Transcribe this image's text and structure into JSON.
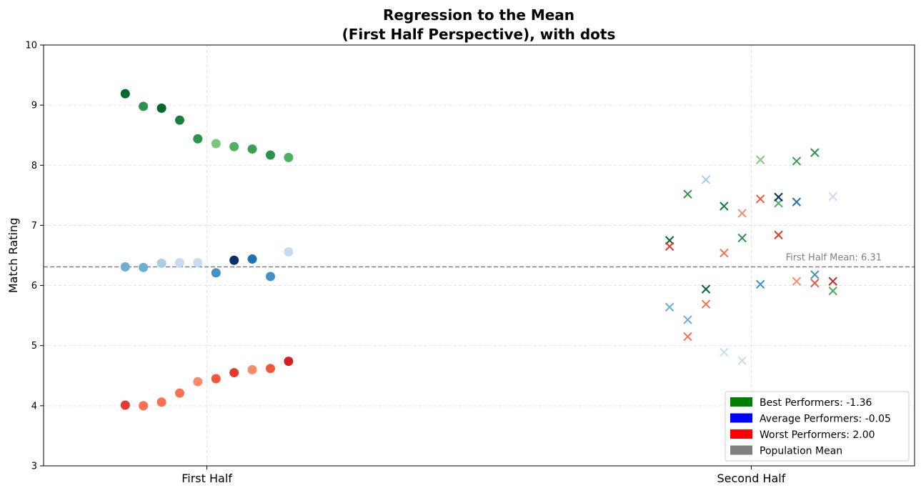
{
  "chart_data": {
    "type": "scatter",
    "title_lines": [
      "Regression to the Mean",
      "(First Half Perspective), with dots"
    ],
    "xlabel": "",
    "ylabel": "Match Rating",
    "categories": [
      "First Half",
      "Second Half"
    ],
    "ylim": [
      3,
      10
    ],
    "yticks": [
      3,
      4,
      5,
      6,
      7,
      8,
      9,
      10
    ],
    "grid": true,
    "population_mean": 6.31,
    "mean_label": "First Half Mean: 6.31",
    "legend_position": "lower-right",
    "legend": [
      {
        "label": "Best Performers: -1.36",
        "color": "#008000"
      },
      {
        "label": "Average Performers: -0.05",
        "color": "#0000ff"
      },
      {
        "label": "Worst Performers: 2.00",
        "color": "#ff0000"
      },
      {
        "label": "Population Mean",
        "color": "#808080"
      }
    ],
    "series": [
      {
        "group": "best",
        "first_half_marker": "dot",
        "second_half_marker": "x",
        "points": [
          {
            "x1": -0.15,
            "y1": 9.19,
            "x2": 0.85,
            "y2": 6.75,
            "color": "#00682a"
          },
          {
            "x1": -0.1167,
            "y1": 8.98,
            "x2": 0.8833,
            "y2": 7.52,
            "color": "#2a924a"
          },
          {
            "x1": -0.0833,
            "y1": 8.95,
            "x2": 0.9167,
            "y2": 5.94,
            "color": "#00682a"
          },
          {
            "x1": -0.05,
            "y1": 8.75,
            "x2": 0.95,
            "y2": 7.32,
            "color": "#1b7e3e"
          },
          {
            "x1": -0.0167,
            "y1": 8.44,
            "x2": 0.9833,
            "y2": 6.79,
            "color": "#2a924a"
          },
          {
            "x1": 0.0167,
            "y1": 8.36,
            "x2": 1.0167,
            "y2": 8.09,
            "color": "#7bc87c"
          },
          {
            "x1": 0.05,
            "y1": 8.31,
            "x2": 1.05,
            "y2": 7.37,
            "color": "#4daf62"
          },
          {
            "x1": 0.0833,
            "y1": 8.27,
            "x2": 1.0833,
            "y2": 8.07,
            "color": "#37a055"
          },
          {
            "x1": 0.1167,
            "y1": 8.17,
            "x2": 1.1167,
            "y2": 8.21,
            "color": "#2a924a"
          },
          {
            "x1": 0.15,
            "y1": 8.13,
            "x2": 1.15,
            "y2": 5.91,
            "color": "#4daf62"
          }
        ]
      },
      {
        "group": "average",
        "first_half_marker": "dot",
        "second_half_marker": "x",
        "points": [
          {
            "x1": -0.15,
            "y1": 6.31,
            "x2": 0.85,
            "y2": 5.64,
            "color": "#6aaed6"
          },
          {
            "x1": -0.1167,
            "y1": 6.3,
            "x2": 0.8833,
            "y2": 5.43,
            "color": "#6aaed6"
          },
          {
            "x1": -0.0833,
            "y1": 6.37,
            "x2": 0.9167,
            "y2": 7.76,
            "color": "#a6cee4"
          },
          {
            "x1": -0.05,
            "y1": 6.38,
            "x2": 0.95,
            "y2": 4.89,
            "color": "#c6dbef"
          },
          {
            "x1": -0.0167,
            "y1": 6.38,
            "x2": 0.9833,
            "y2": 4.75,
            "color": "#c6dbef"
          },
          {
            "x1": 0.0167,
            "y1": 6.21,
            "x2": 1.0167,
            "y2": 6.02,
            "color": "#4292c6"
          },
          {
            "x1": 0.05,
            "y1": 6.42,
            "x2": 1.05,
            "y2": 7.47,
            "color": "#08306b"
          },
          {
            "x1": 0.0833,
            "y1": 6.44,
            "x2": 1.0833,
            "y2": 7.39,
            "color": "#2171b5"
          },
          {
            "x1": 0.1167,
            "y1": 6.15,
            "x2": 1.1167,
            "y2": 6.18,
            "color": "#4292c6"
          },
          {
            "x1": 0.15,
            "y1": 6.56,
            "x2": 1.15,
            "y2": 7.48,
            "color": "#c6dbef"
          }
        ]
      },
      {
        "group": "worst",
        "first_half_marker": "dot",
        "second_half_marker": "x",
        "points": [
          {
            "x1": -0.15,
            "y1": 4.01,
            "x2": 0.85,
            "y2": 6.65,
            "color": "#e8392f"
          },
          {
            "x1": -0.1167,
            "y1": 4.0,
            "x2": 0.8833,
            "y2": 5.15,
            "color": "#fb7050"
          },
          {
            "x1": -0.0833,
            "y1": 4.06,
            "x2": 0.9167,
            "y2": 5.69,
            "color": "#fb7050"
          },
          {
            "x1": -0.05,
            "y1": 4.21,
            "x2": 0.95,
            "y2": 6.54,
            "color": "#fb7050"
          },
          {
            "x1": -0.0167,
            "y1": 4.4,
            "x2": 0.9833,
            "y2": 7.2,
            "color": "#fc8a6a"
          },
          {
            "x1": 0.0167,
            "y1": 4.45,
            "x2": 1.0167,
            "y2": 7.44,
            "color": "#f5553c"
          },
          {
            "x1": 0.05,
            "y1": 4.55,
            "x2": 1.05,
            "y2": 6.84,
            "color": "#e8392f"
          },
          {
            "x1": 0.0833,
            "y1": 4.6,
            "x2": 1.0833,
            "y2": 6.07,
            "color": "#fc8a6a"
          },
          {
            "x1": 0.1167,
            "y1": 4.62,
            "x2": 1.1167,
            "y2": 6.04,
            "color": "#f5553c"
          },
          {
            "x1": 0.15,
            "y1": 4.74,
            "x2": 1.15,
            "y2": 6.07,
            "color": "#d42020"
          }
        ]
      }
    ]
  }
}
